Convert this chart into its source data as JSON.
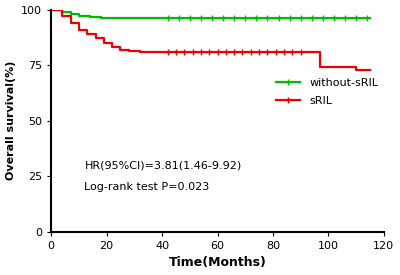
{
  "green_times": [
    0,
    4,
    7,
    10,
    14,
    18,
    22,
    26,
    30,
    35,
    40,
    115
  ],
  "green_surv": [
    100,
    99,
    98,
    97,
    96.5,
    96,
    96,
    96,
    96,
    96,
    96,
    96
  ],
  "green_censors_t": [
    42,
    46,
    50,
    54,
    58,
    62,
    66,
    70,
    74,
    78,
    82,
    86,
    90,
    94,
    98,
    102,
    106,
    110,
    114
  ],
  "green_censors_s": [
    96,
    96,
    96,
    96,
    96,
    96,
    96,
    96,
    96,
    96,
    96,
    96,
    96,
    96,
    96,
    96,
    96,
    96,
    96
  ],
  "red_times": [
    0,
    4,
    7,
    10,
    13,
    16,
    19,
    22,
    25,
    28,
    32,
    36,
    40,
    93,
    97,
    100,
    103,
    106,
    110,
    115
  ],
  "red_surv": [
    100,
    97,
    94,
    91,
    89,
    87,
    85,
    83,
    82,
    81.5,
    81,
    81,
    81,
    81,
    74,
    74,
    74,
    74,
    73,
    73
  ],
  "red_censors_t": [
    42,
    45,
    48,
    51,
    54,
    57,
    60,
    63,
    66,
    69,
    72,
    75,
    78,
    81,
    84,
    87,
    90
  ],
  "red_censors_s": [
    81,
    81,
    81,
    81,
    81,
    81,
    81,
    81,
    81,
    81,
    81,
    81,
    81,
    81,
    81,
    81,
    81
  ],
  "xlim": [
    0,
    120
  ],
  "ylim": [
    0,
    100
  ],
  "xticks": [
    0,
    20,
    40,
    60,
    80,
    100,
    120
  ],
  "yticks": [
    0,
    25,
    50,
    75,
    100
  ],
  "xlabel": "Time(Months)",
  "ylabel": "Overall survival(%)",
  "green_color": "#00bb00",
  "red_color": "#ee0000",
  "annotation1": "HR(95%CI)=3.81(1.46-9.92)",
  "annotation2": "Log-rank test P=0.023",
  "legend_label_green": "without-sRIL",
  "legend_label_red": "sRIL",
  "bg_color": "#ffffff",
  "linewidth": 1.6
}
